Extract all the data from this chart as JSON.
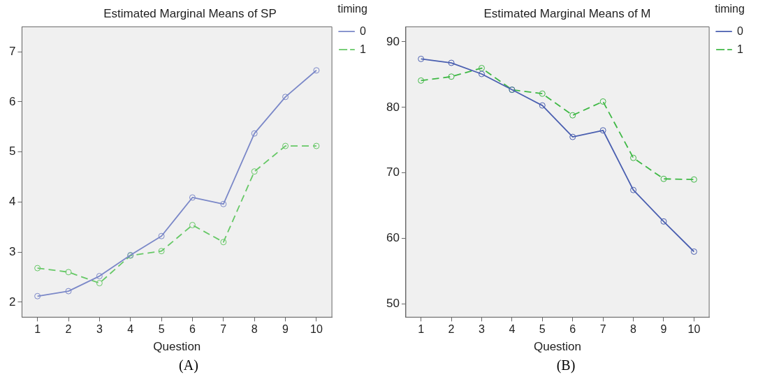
{
  "chart_data": [
    {
      "type": "line",
      "title": "Estimated Marginal Means of SP",
      "xlabel": "Question",
      "categories": [
        "1",
        "2",
        "3",
        "4",
        "5",
        "6",
        "7",
        "8",
        "9",
        "10"
      ],
      "series": [
        {
          "name": "0",
          "color": "#7b88c8",
          "line_style": "solid",
          "values": [
            2.12,
            2.22,
            2.52,
            2.94,
            3.32,
            4.09,
            3.96,
            5.37,
            6.1,
            6.63
          ]
        },
        {
          "name": "1",
          "color": "#66c866",
          "line_style": "dashed",
          "values": [
            2.68,
            2.6,
            2.38,
            2.93,
            3.02,
            3.54,
            3.2,
            4.61,
            5.12,
            5.12
          ]
        }
      ],
      "ylim": [
        1.7,
        7.5
      ],
      "yticks": [
        2,
        3,
        4,
        5,
        6,
        7
      ],
      "grid": false,
      "legend": "right",
      "legend_title": "timing",
      "marker": "circle",
      "annotations": [
        "(A)"
      ]
    },
    {
      "type": "line",
      "title": "Estimated Marginal Means of M",
      "xlabel": "Question",
      "categories": [
        "1",
        "2",
        "3",
        "4",
        "5",
        "6",
        "7",
        "8",
        "9",
        "10"
      ],
      "series": [
        {
          "name": "0",
          "color": "#4a5fb0",
          "line_style": "solid",
          "values": [
            87.4,
            86.8,
            85.1,
            82.7,
            80.3,
            75.5,
            76.5,
            67.4,
            62.6,
            58.0
          ]
        },
        {
          "name": "1",
          "color": "#3fb845",
          "line_style": "dashed",
          "values": [
            84.1,
            84.7,
            86.0,
            82.7,
            82.1,
            78.8,
            80.9,
            72.3,
            69.1,
            69.0
          ]
        }
      ],
      "ylim": [
        48,
        92.3
      ],
      "yticks": [
        50,
        60,
        70,
        80,
        90
      ],
      "grid": false,
      "legend": "right",
      "legend_title": "timing",
      "marker": "circle",
      "annotations": [
        "(B)"
      ]
    }
  ]
}
